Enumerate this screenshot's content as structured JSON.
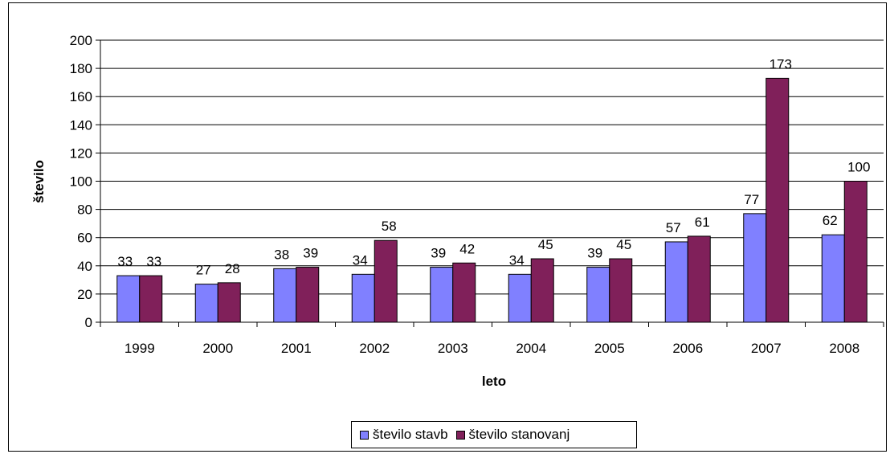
{
  "chart_data": {
    "type": "bar",
    "categories": [
      "1999",
      "2000",
      "2001",
      "2002",
      "2003",
      "2004",
      "2005",
      "2006",
      "2007",
      "2008"
    ],
    "series": [
      {
        "name": "število stavb",
        "values": [
          33,
          27,
          38,
          34,
          39,
          34,
          39,
          57,
          77,
          62
        ],
        "color": "#8080ff"
      },
      {
        "name": "število stanovanj",
        "values": [
          33,
          28,
          39,
          58,
          42,
          45,
          45,
          61,
          173,
          100
        ],
        "color": "#80205a"
      }
    ],
    "xlabel": "leto",
    "ylabel": "število",
    "ylim": [
      0,
      200
    ],
    "yticks": [
      0,
      20,
      40,
      60,
      80,
      100,
      120,
      140,
      160,
      180,
      200
    ],
    "grid": true,
    "legend_position": "bottom"
  }
}
